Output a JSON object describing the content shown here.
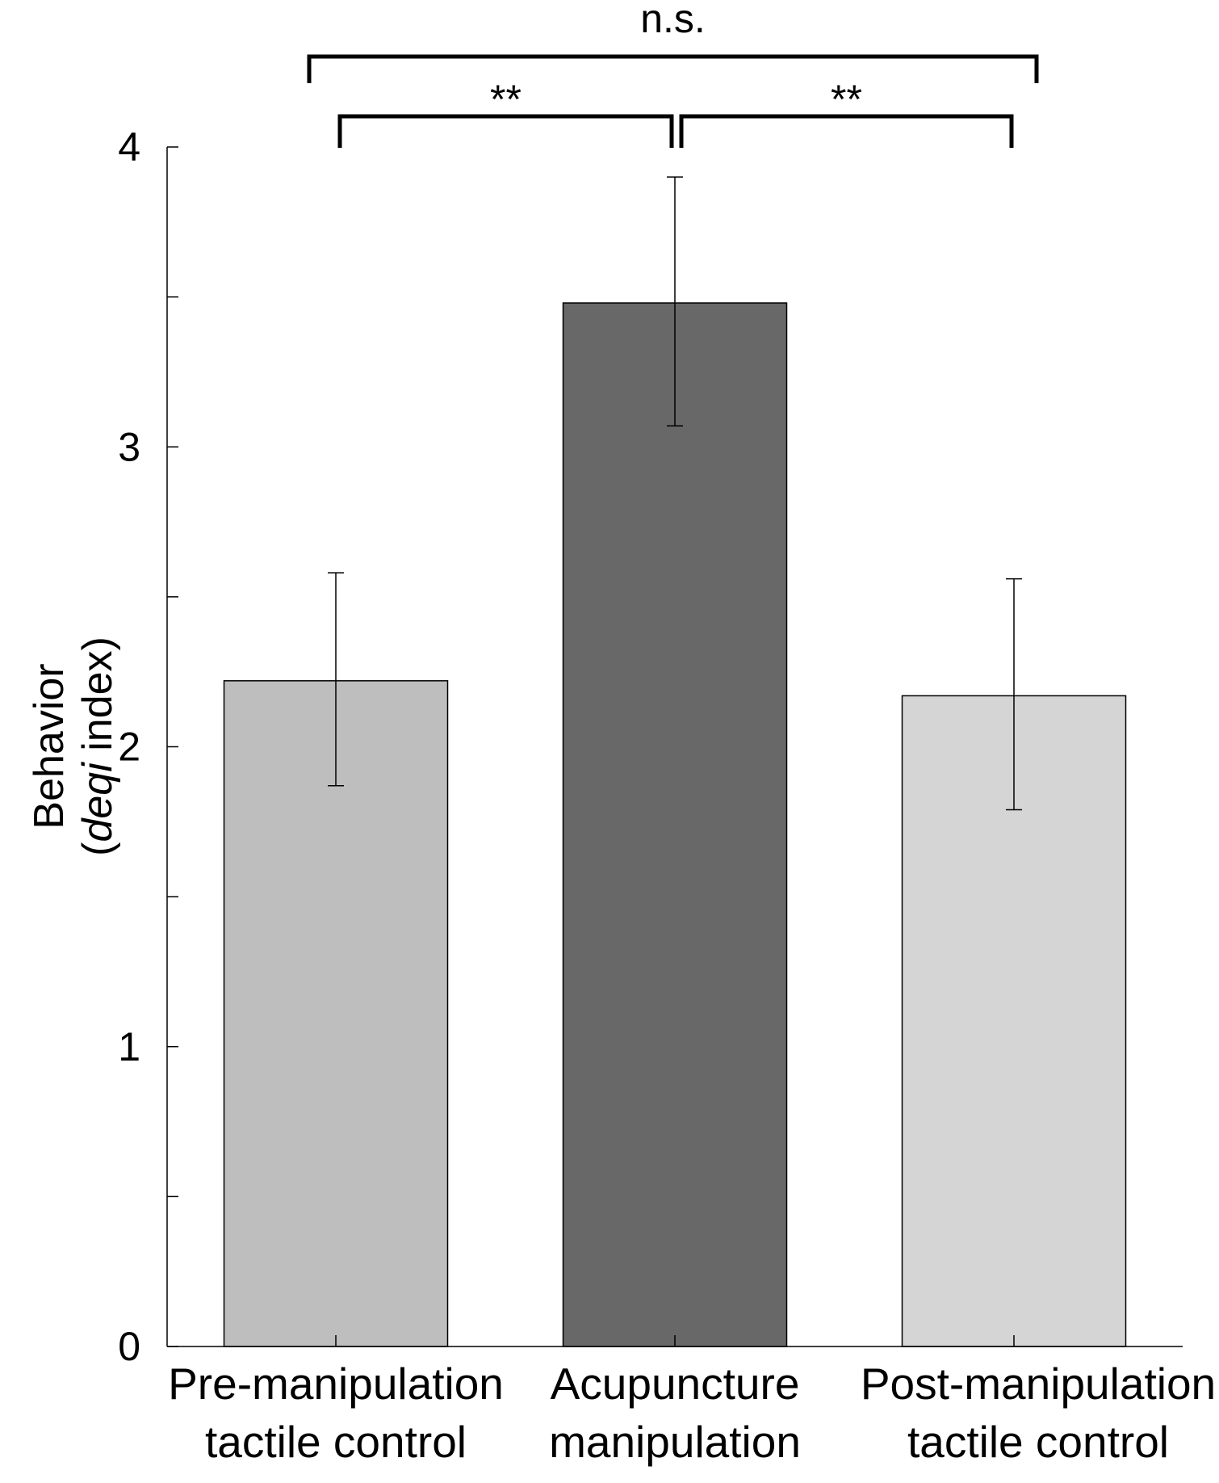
{
  "chart_data": {
    "type": "bar",
    "title": "",
    "xlabel": "",
    "ylabel": "Behavior (deqi index)",
    "ylabel_lines": {
      "line1": "Behavior",
      "line2_prefix": "(",
      "line2_italic": "deqi",
      "line2_suffix": " index)"
    },
    "ylim": [
      0,
      4
    ],
    "yticks": [
      "0",
      "1",
      "2",
      "3",
      "4"
    ],
    "minor_ticks": [
      0.5,
      1.5,
      2.5,
      3.5
    ],
    "categories": [
      [
        "Pre-manipulation",
        "tactile control"
      ],
      [
        "Acupuncture",
        "manipulation"
      ],
      [
        "Post-manipulation",
        "tactile control"
      ]
    ],
    "values": [
      2.22,
      3.48,
      2.17
    ],
    "error_upper": [
      2.58,
      3.9,
      2.56
    ],
    "error_lower": [
      1.87,
      3.07,
      1.79
    ],
    "bar_colors": [
      "#bebebe",
      "#686868",
      "#d5d5d5"
    ],
    "significance": [
      {
        "from": 0,
        "to": 1,
        "label": "**"
      },
      {
        "from": 1,
        "to": 2,
        "label": "**"
      },
      {
        "from": 0,
        "to": 2,
        "label": "n.s."
      }
    ],
    "grid": false,
    "legend": "none"
  }
}
